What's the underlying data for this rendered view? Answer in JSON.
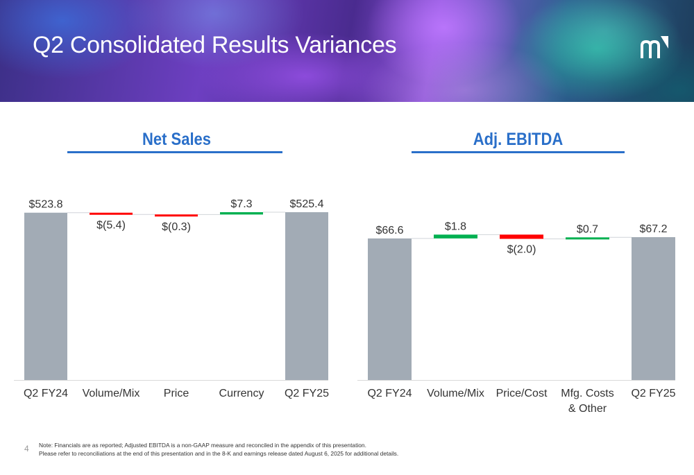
{
  "title": "Q2 Consolidated Results Variances",
  "page_number": "4",
  "footnote": {
    "line1": "Note: Financials are as reported; Adjusted EBITDA is a non-GAAP measure and reconciled in the appendix of this presentation.",
    "line2": "Please refer to reconciliations at the end of this presentation and in the 8-K and earnings release dated August 6, 2025 for additional details."
  },
  "colors": {
    "accent": "#2a6fc9",
    "total": "#a2abb5",
    "increase": "#00b050",
    "decrease": "#ff0000"
  },
  "logo_icon": "m-logo-icon",
  "chart_data": [
    {
      "type": "waterfall",
      "title": "Net Sales",
      "categories": [
        "Q2 FY24",
        "Volume/Mix",
        "Price",
        "Currency",
        "Q2 FY25"
      ],
      "values": [
        523.8,
        -5.4,
        -0.3,
        7.3,
        525.4
      ],
      "measures": [
        "total",
        "relative",
        "relative",
        "relative",
        "total"
      ],
      "labels": [
        "$523.8",
        "$(5.4)",
        "$(0.3)",
        "$7.3",
        "$525.4"
      ],
      "legend": "none",
      "grid": false
    },
    {
      "type": "waterfall",
      "title": "Adj. EBITDA",
      "categories": [
        "Q2 FY24",
        "Volume/Mix",
        "Price/Cost",
        "Mfg. Costs & Other",
        "Q2 FY25"
      ],
      "values": [
        66.6,
        1.8,
        -2.0,
        0.7,
        67.2
      ],
      "measures": [
        "total",
        "relative",
        "relative",
        "relative",
        "total"
      ],
      "labels": [
        "$66.6",
        "$1.8",
        "$(2.0)",
        "$0.7",
        "$67.2"
      ],
      "legend": "none",
      "grid": false
    }
  ]
}
